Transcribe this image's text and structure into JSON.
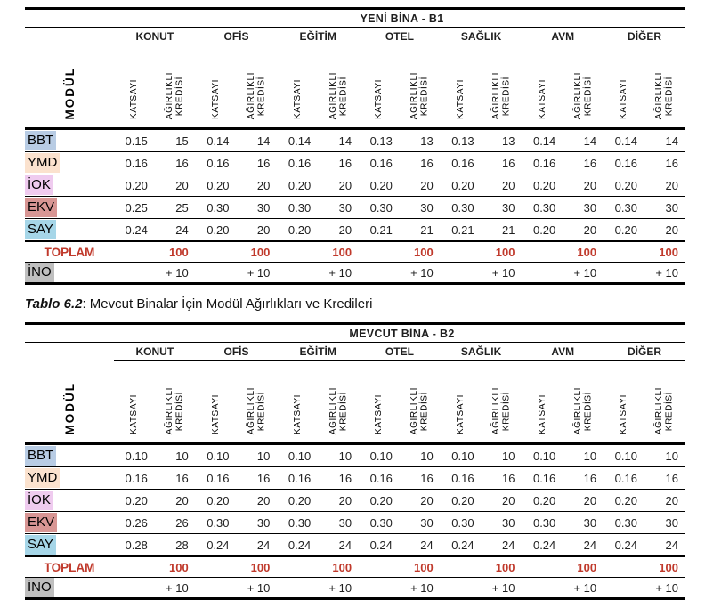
{
  "colors": {
    "accent_red": "#C0392B",
    "border_black": "#000000",
    "row_label_colors": {
      "BBT": "#B8CCE4",
      "YMD": "#FBE2CE",
      "IOK": "#EFCBEF",
      "EKV": "#D89694",
      "SAY": "#A6D6E8",
      "INO": "#BFBFBF"
    }
  },
  "caption": {
    "prefix": "Tablo 6.2",
    "rest": ": Mevcut Binalar İçin Modül Ağırlıkları ve Kredileri"
  },
  "tables": [
    {
      "data_name": "table-yeni-bina-b1",
      "title": "YENİ BİNA - B1",
      "module_header": "MODÜL",
      "categories": [
        "KONUT",
        "OFİS",
        "EĞİTİM",
        "OTEL",
        "SAĞLIK",
        "AVM",
        "DİĞER"
      ],
      "subheaders": [
        "KATSAYI",
        "AĞIRLIKLI\nKREDİSİ"
      ],
      "rows": [
        {
          "label": "BBT",
          "color": "#B8CCE4",
          "values": [
            [
              "0.15",
              "15"
            ],
            [
              "0.14",
              "14"
            ],
            [
              "0.14",
              "14"
            ],
            [
              "0.13",
              "13"
            ],
            [
              "0.13",
              "13"
            ],
            [
              "0.14",
              "14"
            ],
            [
              "0.14",
              "14"
            ]
          ]
        },
        {
          "label": "YMD",
          "color": "#FBE2CE",
          "values": [
            [
              "0.16",
              "16"
            ],
            [
              "0.16",
              "16"
            ],
            [
              "0.16",
              "16"
            ],
            [
              "0.16",
              "16"
            ],
            [
              "0.16",
              "16"
            ],
            [
              "0.16",
              "16"
            ],
            [
              "0.16",
              "16"
            ]
          ]
        },
        {
          "label": "İOK",
          "color": "#EFCBEF",
          "values": [
            [
              "0.20",
              "20"
            ],
            [
              "0.20",
              "20"
            ],
            [
              "0.20",
              "20"
            ],
            [
              "0.20",
              "20"
            ],
            [
              "0.20",
              "20"
            ],
            [
              "0.20",
              "20"
            ],
            [
              "0.20",
              "20"
            ]
          ]
        },
        {
          "label": "EKV",
          "color": "#D89694",
          "values": [
            [
              "0.25",
              "25"
            ],
            [
              "0.30",
              "30"
            ],
            [
              "0.30",
              "30"
            ],
            [
              "0.30",
              "30"
            ],
            [
              "0.30",
              "30"
            ],
            [
              "0.30",
              "30"
            ],
            [
              "0.30",
              "30"
            ]
          ]
        },
        {
          "label": "SAY",
          "color": "#A6D6E8",
          "values": [
            [
              "0.24",
              "24"
            ],
            [
              "0.20",
              "20"
            ],
            [
              "0.20",
              "20"
            ],
            [
              "0.21",
              "21"
            ],
            [
              "0.21",
              "21"
            ],
            [
              "0.20",
              "20"
            ],
            [
              "0.20",
              "20"
            ]
          ]
        }
      ],
      "total_row": {
        "label": "TOPLAM",
        "values": [
          "100",
          "100",
          "100",
          "100",
          "100",
          "100",
          "100"
        ]
      },
      "ino_row": {
        "label": "İNO",
        "color": "#BFBFBF",
        "values": [
          "+ 10",
          "+ 10",
          "+ 10",
          "+ 10",
          "+ 10",
          "+ 10",
          "+ 10"
        ]
      }
    },
    {
      "data_name": "table-mevcut-bina-b2",
      "title": "MEVCUT BİNA - B2",
      "module_header": "MODÜL",
      "categories": [
        "KONUT",
        "OFİS",
        "EĞİTİM",
        "OTEL",
        "SAĞLIK",
        "AVM",
        "DİĞER"
      ],
      "subheaders": [
        "KATSAYI",
        "AĞIRLIKLI\nKREDİSİ"
      ],
      "rows": [
        {
          "label": "BBT",
          "color": "#B8CCE4",
          "values": [
            [
              "0.10",
              "10"
            ],
            [
              "0.10",
              "10"
            ],
            [
              "0.10",
              "10"
            ],
            [
              "0.10",
              "10"
            ],
            [
              "0.10",
              "10"
            ],
            [
              "0.10",
              "10"
            ],
            [
              "0.10",
              "10"
            ]
          ]
        },
        {
          "label": "YMD",
          "color": "#FBE2CE",
          "values": [
            [
              "0.16",
              "16"
            ],
            [
              "0.16",
              "16"
            ],
            [
              "0.16",
              "16"
            ],
            [
              "0.16",
              "16"
            ],
            [
              "0.16",
              "16"
            ],
            [
              "0.16",
              "16"
            ],
            [
              "0.16",
              "16"
            ]
          ]
        },
        {
          "label": "İOK",
          "color": "#EFCBEF",
          "values": [
            [
              "0.20",
              "20"
            ],
            [
              "0.20",
              "20"
            ],
            [
              "0.20",
              "20"
            ],
            [
              "0.20",
              "20"
            ],
            [
              "0.20",
              "20"
            ],
            [
              "0.20",
              "20"
            ],
            [
              "0.20",
              "20"
            ]
          ]
        },
        {
          "label": "EKV",
          "color": "#D89694",
          "values": [
            [
              "0.26",
              "26"
            ],
            [
              "0.30",
              "30"
            ],
            [
              "0.30",
              "30"
            ],
            [
              "0.30",
              "30"
            ],
            [
              "0.30",
              "30"
            ],
            [
              "0.30",
              "30"
            ],
            [
              "0.30",
              "30"
            ]
          ]
        },
        {
          "label": "SAY",
          "color": "#A6D6E8",
          "values": [
            [
              "0.28",
              "28"
            ],
            [
              "0.24",
              "24"
            ],
            [
              "0.24",
              "24"
            ],
            [
              "0.24",
              "24"
            ],
            [
              "0.24",
              "24"
            ],
            [
              "0.24",
              "24"
            ],
            [
              "0.24",
              "24"
            ]
          ]
        }
      ],
      "total_row": {
        "label": "TOPLAM",
        "values": [
          "100",
          "100",
          "100",
          "100",
          "100",
          "100",
          "100"
        ]
      },
      "ino_row": {
        "label": "İNO",
        "color": "#BFBFBF",
        "values": [
          "+ 10",
          "+ 10",
          "+ 10",
          "+ 10",
          "+ 10",
          "+ 10",
          "+ 10"
        ]
      }
    }
  ]
}
